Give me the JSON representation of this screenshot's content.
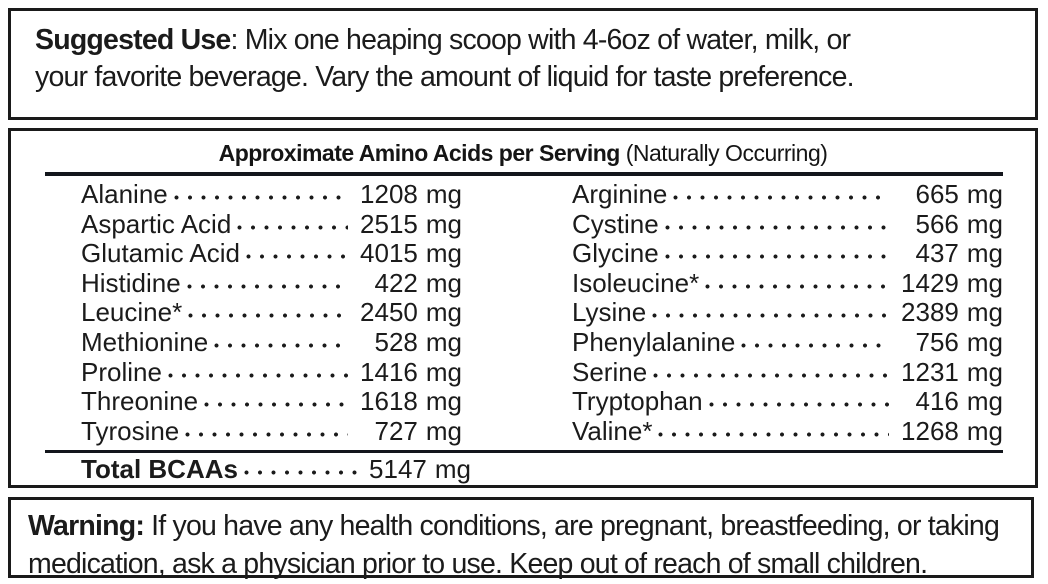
{
  "suggested_use": {
    "label": "Suggested Use",
    "line1_rest": ": Mix one heaping scoop with 4-6oz of water, milk, or",
    "line2": "your favorite beverage. Vary the amount of liquid for taste preference."
  },
  "amino_table": {
    "title_bold": "Approximate Amino Acids per Serving",
    "title_regular": " (Naturally Occurring)",
    "unit": "mg",
    "left_rows": [
      {
        "name": "Alanine",
        "value": "1208"
      },
      {
        "name": "Aspartic Acid",
        "value": "2515"
      },
      {
        "name": "Glutamic Acid",
        "value": "4015"
      },
      {
        "name": "Histidine",
        "value": "422"
      },
      {
        "name": "Leucine*",
        "value": "2450"
      },
      {
        "name": "Methionine",
        "value": "528"
      },
      {
        "name": "Proline",
        "value": "1416"
      },
      {
        "name": "Threonine",
        "value": "1618"
      },
      {
        "name": "Tyrosine",
        "value": "727"
      }
    ],
    "right_rows": [
      {
        "name": "Arginine",
        "value": "665"
      },
      {
        "name": "Cystine",
        "value": "566"
      },
      {
        "name": "Glycine",
        "value": "437"
      },
      {
        "name": "Isoleucine*",
        "value": "1429"
      },
      {
        "name": "Lysine",
        "value": "2389"
      },
      {
        "name": "Phenylalanine",
        "value": "756"
      },
      {
        "name": "Serine",
        "value": "1231"
      },
      {
        "name": "Tryptophan",
        "value": "416"
      },
      {
        "name": "Valine*",
        "value": "1268"
      }
    ],
    "total": {
      "name": "Total BCAAs",
      "value": "5147"
    }
  },
  "warning": {
    "label": "Warning:",
    "line1_rest": " If you have any health conditions, are pregnant, breastfeeding, or taking",
    "line2": "medication, ask a physician prior to use. Keep out of reach of small children."
  }
}
